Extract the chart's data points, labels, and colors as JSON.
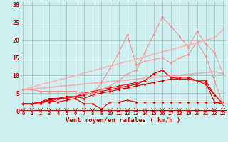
{
  "xlabel": "Vent moyen/en rafales ( km/h )",
  "bg_color": "#cef0f0",
  "grid_color": "#aabbbb",
  "x": [
    0,
    1,
    2,
    3,
    4,
    5,
    6,
    7,
    8,
    9,
    10,
    11,
    12,
    13,
    14,
    15,
    16,
    17,
    18,
    19,
    20,
    21,
    22,
    23
  ],
  "series": [
    {
      "color": "#dd0000",
      "alpha": 1.0,
      "linewidth": 0.8,
      "markersize": 2.0,
      "values": [
        2.0,
        2.0,
        2.0,
        3.0,
        2.5,
        3.0,
        3.5,
        2.0,
        2.0,
        0.5,
        2.5,
        2.5,
        3.0,
        2.5,
        2.5,
        2.5,
        2.5,
        2.5,
        2.5,
        2.5,
        2.5,
        2.5,
        2.5,
        2.0
      ]
    },
    {
      "color": "#cc0000",
      "alpha": 1.0,
      "linewidth": 0.8,
      "markersize": 2.0,
      "values": [
        2.0,
        2.0,
        2.5,
        3.5,
        3.5,
        4.0,
        4.0,
        3.5,
        4.5,
        5.0,
        5.5,
        6.0,
        6.5,
        7.0,
        7.5,
        8.0,
        8.5,
        9.0,
        9.0,
        9.0,
        8.5,
        8.0,
        2.5,
        2.0
      ]
    },
    {
      "color": "#ee0000",
      "alpha": 1.0,
      "linewidth": 0.8,
      "markersize": 2.0,
      "values": [
        2.0,
        2.0,
        2.5,
        3.0,
        3.5,
        3.5,
        4.0,
        4.5,
        5.0,
        5.5,
        6.0,
        6.5,
        7.0,
        7.5,
        8.5,
        10.5,
        11.5,
        9.5,
        9.5,
        9.5,
        8.5,
        8.5,
        4.5,
        2.0
      ]
    },
    {
      "color": "#ff0000",
      "alpha": 1.0,
      "linewidth": 0.8,
      "markersize": 2.0,
      "values": [
        2.0,
        2.0,
        2.5,
        2.5,
        3.5,
        4.0,
        4.0,
        5.0,
        5.5,
        6.0,
        6.5,
        7.0,
        7.5,
        8.0,
        8.5,
        10.5,
        11.5,
        9.5,
        9.0,
        9.0,
        8.5,
        7.5,
        4.5,
        2.0
      ]
    },
    {
      "color": "#ff8888",
      "alpha": 0.9,
      "linewidth": 0.8,
      "markersize": 2.0,
      "values": [
        6.0,
        6.0,
        5.5,
        5.5,
        5.5,
        5.5,
        5.5,
        5.0,
        4.5,
        8.0,
        12.0,
        16.5,
        21.5,
        13.0,
        14.0,
        14.5,
        15.0,
        13.5,
        15.0,
        16.0,
        19.5,
        15.5,
        8.5,
        2.0
      ]
    },
    {
      "color": "#ff8888",
      "alpha": 0.9,
      "linewidth": 0.8,
      "markersize": 2.0,
      "values": [
        6.0,
        6.0,
        5.5,
        5.5,
        5.5,
        5.5,
        5.5,
        5.0,
        5.0,
        6.0,
        7.0,
        8.5,
        10.5,
        11.5,
        16.5,
        21.5,
        26.5,
        24.0,
        21.0,
        18.0,
        22.5,
        19.0,
        16.5,
        10.5
      ]
    },
    {
      "color": "#ffaaaa",
      "alpha": 0.85,
      "linewidth": 1.2,
      "markersize": 0,
      "values": [
        6.0,
        6.7,
        7.4,
        8.0,
        8.7,
        9.3,
        10.0,
        10.7,
        11.3,
        12.0,
        12.7,
        13.3,
        14.0,
        14.7,
        15.3,
        16.0,
        16.7,
        17.3,
        18.0,
        18.7,
        19.3,
        20.0,
        20.7,
        23.0
      ]
    },
    {
      "color": "#ff9999",
      "alpha": 0.75,
      "linewidth": 1.2,
      "markersize": 0,
      "values": [
        6.0,
        6.2,
        6.4,
        6.6,
        6.9,
        7.1,
        7.3,
        7.6,
        7.8,
        8.0,
        8.3,
        8.5,
        8.7,
        9.0,
        9.2,
        9.4,
        9.7,
        9.9,
        10.1,
        10.4,
        10.6,
        10.8,
        11.1,
        10.5
      ]
    }
  ],
  "ylim": [
    0,
    31
  ],
  "yticks": [
    0,
    5,
    10,
    15,
    20,
    25,
    30
  ],
  "xticks": [
    0,
    1,
    2,
    3,
    4,
    5,
    6,
    7,
    8,
    9,
    10,
    11,
    12,
    13,
    14,
    15,
    16,
    17,
    18,
    19,
    20,
    21,
    22,
    23
  ],
  "tick_color": "#cc0000",
  "label_color": "#cc0000",
  "xlabel_fontsize": 6.5,
  "ytick_fontsize": 6,
  "xtick_fontsize": 5
}
